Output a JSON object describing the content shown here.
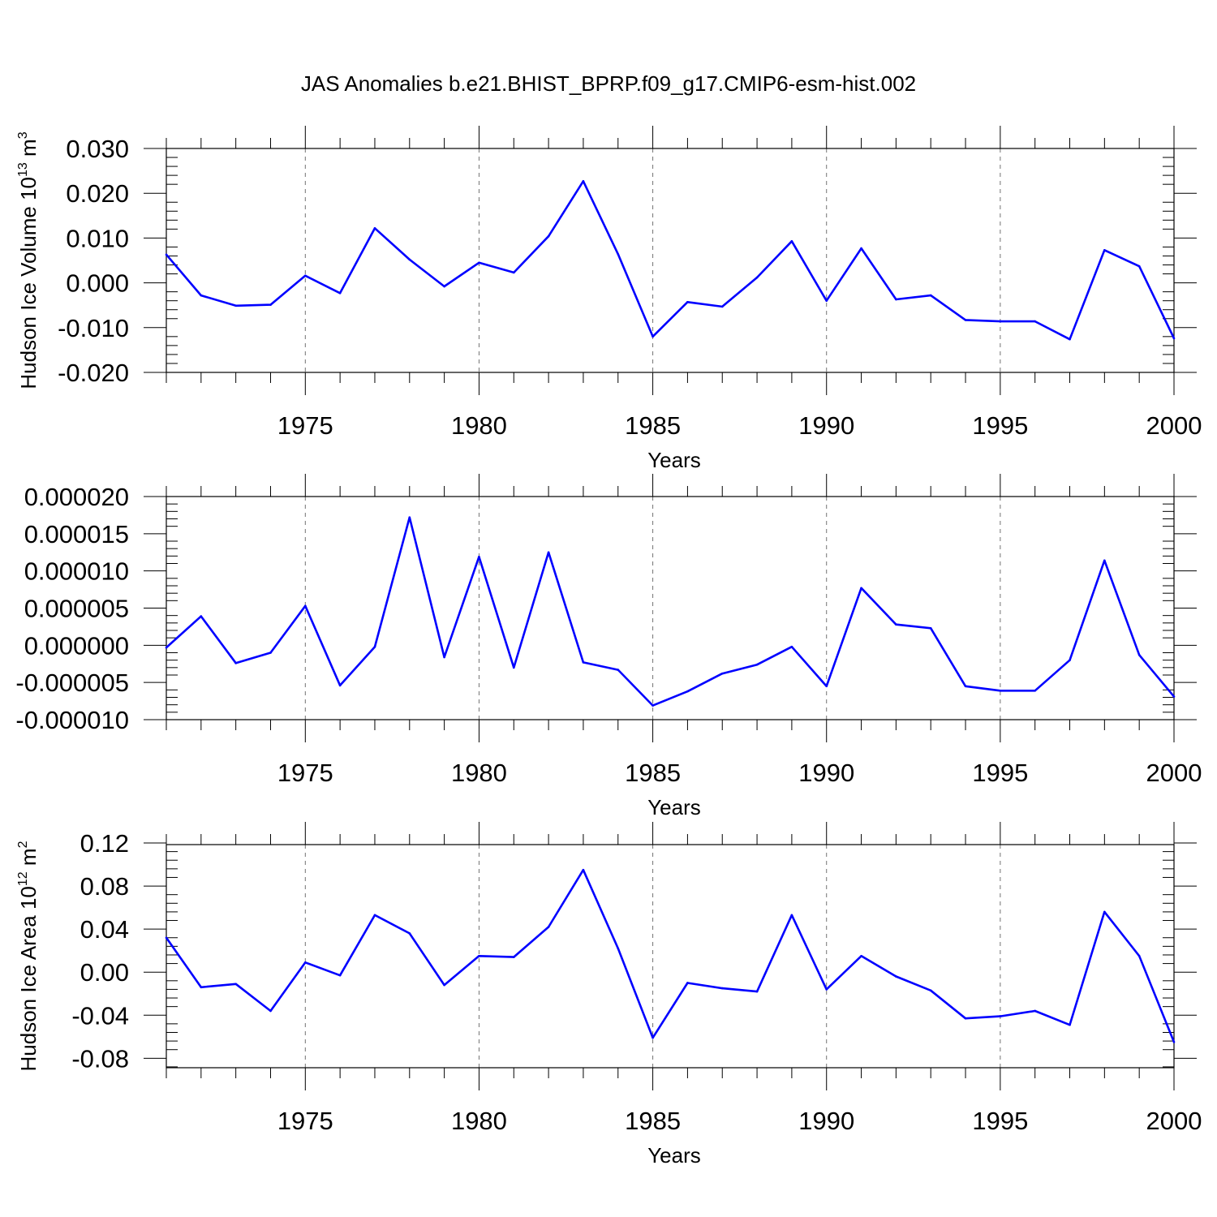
{
  "figure_title": "JAS Anomalies b.e21.BHIST_BPRP.f09_g17.CMIP6-esm-hist.002",
  "colors": {
    "line": "#0000ff",
    "axis": "#000000",
    "background": "#ffffff"
  },
  "chart_data": [
    {
      "type": "line",
      "title": "JAS Anomalies b.e21.BHIST_BPRP.f09_g17.CMIP6-esm-hist.002",
      "xlabel": "Years",
      "ylabel": "Hudson Ice Volume 10",
      "ylabel_exponent": "13",
      "ylabel_unit": " m",
      "ylabel_unit_power": "3",
      "xlim": [
        1971,
        2000
      ],
      "ylim": [
        -0.02,
        0.03
      ],
      "x_ticks": [
        1975,
        1980,
        1985,
        1990,
        1995,
        2000
      ],
      "y_ticks": [
        -0.02,
        -0.01,
        0.0,
        0.01,
        0.02,
        0.03
      ],
      "y_tick_labels": [
        "-0.020",
        "-0.010",
        "0.000",
        "0.010",
        "0.020",
        "0.030"
      ],
      "grid": "dashed vertical at x ticks",
      "x": [
        1971,
        1972,
        1973,
        1974,
        1975,
        1976,
        1977,
        1978,
        1979,
        1980,
        1981,
        1982,
        1983,
        1984,
        1985,
        1986,
        1987,
        1988,
        1989,
        1990,
        1991,
        1992,
        1993,
        1994,
        1995,
        1996,
        1997,
        1998,
        1999,
        2000
      ],
      "values": [
        0.0063,
        -0.0028,
        -0.0051,
        -0.0049,
        0.0016,
        -0.0023,
        0.0122,
        0.0052,
        -0.0008,
        0.0045,
        0.0023,
        0.0104,
        0.0227,
        0.0064,
        -0.012,
        -0.0043,
        -0.0053,
        0.0012,
        0.0093,
        -0.004,
        0.0077,
        -0.0037,
        -0.0028,
        -0.0083,
        -0.0086,
        -0.0086,
        -0.0126,
        0.0073,
        0.0037,
        -0.0124
      ]
    },
    {
      "type": "line",
      "title": "",
      "xlabel": "Years",
      "ylabel": "",
      "xlim": [
        1971,
        2000
      ],
      "ylim": [
        -1e-05,
        2e-05
      ],
      "x_ticks": [
        1975,
        1980,
        1985,
        1990,
        1995,
        2000
      ],
      "y_ticks": [
        -1e-05,
        -5e-06,
        0.0,
        5e-06,
        1e-05,
        1.5e-05,
        2e-05
      ],
      "y_tick_labels": [
        "-0.000010",
        "-0.000005",
        "0.000000",
        "0.000005",
        "0.000010",
        "0.000015",
        "0.000020"
      ],
      "grid": "dashed vertical at x ticks",
      "x": [
        1971,
        1972,
        1973,
        1974,
        1975,
        1976,
        1977,
        1978,
        1979,
        1980,
        1981,
        1982,
        1983,
        1984,
        1985,
        1986,
        1987,
        1988,
        1989,
        1990,
        1991,
        1992,
        1993,
        1994,
        1995,
        1996,
        1997,
        1998,
        1999,
        2000
      ],
      "values": [
        -3e-07,
        3.9e-06,
        -2.4e-06,
        -1e-06,
        5.3e-06,
        -5.4e-06,
        -2e-07,
        1.72e-05,
        -1.6e-06,
        1.19e-05,
        -3e-06,
        1.25e-05,
        -2.3e-06,
        -3.3e-06,
        -8.1e-06,
        -6.2e-06,
        -3.8e-06,
        -2.6e-06,
        -2e-07,
        -5.5e-06,
        7.7e-06,
        2.8e-06,
        2.3e-06,
        -5.5e-06,
        -6.1e-06,
        -6.1e-06,
        -2e-06,
        1.14e-05,
        -1.3e-06,
        -6.9e-06
      ]
    },
    {
      "type": "line",
      "title": "",
      "xlabel": "Years",
      "ylabel": "Hudson Ice Area 10",
      "ylabel_exponent": "12",
      "ylabel_unit": " m",
      "ylabel_unit_power": "2",
      "xlim": [
        1971,
        2000
      ],
      "ylim": [
        -0.09,
        0.12
      ],
      "x_ticks": [
        1975,
        1980,
        1985,
        1990,
        1995,
        2000
      ],
      "y_ticks": [
        -0.08,
        -0.04,
        0.0,
        0.04,
        0.08,
        0.12
      ],
      "y_tick_labels": [
        "-0.08",
        "-0.04",
        "0.00",
        "0.04",
        "0.08",
        "0.12"
      ],
      "grid": "dashed vertical at x ticks",
      "x": [
        1971,
        1972,
        1973,
        1974,
        1975,
        1976,
        1977,
        1978,
        1979,
        1980,
        1981,
        1982,
        1983,
        1984,
        1985,
        1986,
        1987,
        1988,
        1989,
        1990,
        1991,
        1992,
        1993,
        1994,
        1995,
        1996,
        1997,
        1998,
        1999,
        2000
      ],
      "values": [
        0.032,
        -0.014,
        -0.011,
        -0.036,
        0.009,
        -0.003,
        0.053,
        0.036,
        -0.012,
        0.015,
        0.014,
        0.042,
        0.095,
        0.022,
        -0.061,
        -0.01,
        -0.015,
        -0.018,
        0.053,
        -0.016,
        0.015,
        -0.004,
        -0.017,
        -0.043,
        -0.041,
        -0.036,
        -0.049,
        0.056,
        0.015,
        -0.065
      ]
    }
  ]
}
